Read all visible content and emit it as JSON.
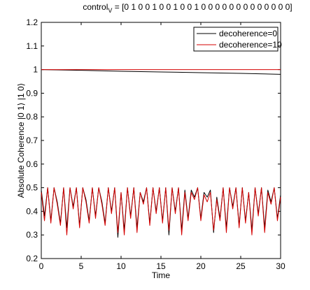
{
  "chart_data": {
    "type": "line",
    "title_main": "control",
    "title_sub": "V",
    "title_rest": " = [0 1 0 0 1 0 0 1 0 0 1 0 0 0 0 0 0 0 0 0 0 0 0 0]",
    "xlabel": "Time",
    "ylabel": "Absolute Coherence |0 1⟩ |1 0⟩",
    "xlim": [
      0,
      30
    ],
    "ylim": [
      0.2,
      1.2
    ],
    "xticks": [
      "0",
      "5",
      "10",
      "15",
      "20",
      "25",
      "30"
    ],
    "yticks": [
      "0.2",
      "0.3",
      "0.4",
      "0.5",
      "0.6",
      "0.7",
      "0.8",
      "0.9",
      "1",
      "1.1",
      "1.2"
    ],
    "legend_position": "top-right",
    "grid": false,
    "series": [
      {
        "name": "decoherence=0",
        "color": "#000000",
        "upper": {
          "x": [
            0,
            5,
            10,
            15,
            20,
            25,
            30
          ],
          "y": [
            1.0,
            0.997,
            0.993,
            0.99,
            0.987,
            0.984,
            0.98
          ]
        },
        "lower": {
          "x": [
            0,
            0.4,
            0.8,
            1.2,
            1.6,
            2.0,
            2.4,
            2.8,
            3.2,
            3.6,
            4.0,
            4.4,
            4.8,
            5.2,
            5.6,
            6.0,
            6.4,
            6.8,
            7.2,
            7.6,
            8.0,
            8.4,
            8.8,
            9.2,
            9.6,
            10.0,
            10.4,
            10.8,
            11.2,
            11.6,
            12.0,
            12.4,
            12.8,
            13.2,
            13.6,
            14.0,
            14.4,
            14.8,
            15.2,
            15.6,
            16.0,
            16.4,
            16.8,
            17.2,
            17.6,
            18.0,
            18.4,
            18.8,
            19.2,
            19.6,
            20.0,
            20.4,
            20.8,
            21.2,
            21.6,
            22.0,
            22.4,
            22.8,
            23.2,
            23.6,
            24.0,
            24.4,
            24.8,
            25.2,
            25.6,
            26.0,
            26.4,
            26.8,
            27.2,
            27.6,
            28.0,
            28.4,
            28.8,
            29.2,
            29.6,
            30.0
          ],
          "y": [
            0.49,
            0.38,
            0.5,
            0.36,
            0.5,
            0.44,
            0.35,
            0.5,
            0.33,
            0.5,
            0.42,
            0.5,
            0.34,
            0.5,
            0.45,
            0.36,
            0.5,
            0.38,
            0.5,
            0.44,
            0.35,
            0.5,
            0.4,
            0.5,
            0.29,
            0.48,
            0.32,
            0.5,
            0.38,
            0.5,
            0.33,
            0.48,
            0.44,
            0.5,
            0.35,
            0.5,
            0.4,
            0.5,
            0.36,
            0.5,
            0.3,
            0.5,
            0.4,
            0.5,
            0.32,
            0.49,
            0.37,
            0.49,
            0.46,
            0.5,
            0.37,
            0.48,
            0.46,
            0.49,
            0.31,
            0.46,
            0.37,
            0.5,
            0.33,
            0.5,
            0.42,
            0.5,
            0.34,
            0.5,
            0.36,
            0.48,
            0.32,
            0.5,
            0.39,
            0.5,
            0.33,
            0.49,
            0.44,
            0.5,
            0.37,
            0.47
          ]
        }
      },
      {
        "name": "decoherence=10",
        "color": "#d40000",
        "upper": {
          "x": [
            0,
            5,
            10,
            15,
            20,
            25,
            30
          ],
          "y": [
            1.0,
            1.0,
            1.0,
            1.0,
            1.0,
            1.0,
            1.0
          ]
        },
        "lower": {
          "x": [
            0,
            0.4,
            0.8,
            1.2,
            1.6,
            2.0,
            2.4,
            2.8,
            3.2,
            3.6,
            4.0,
            4.4,
            4.8,
            5.2,
            5.6,
            6.0,
            6.4,
            6.8,
            7.2,
            7.6,
            8.0,
            8.4,
            8.8,
            9.2,
            9.6,
            10.0,
            10.4,
            10.8,
            11.2,
            11.6,
            12.0,
            12.4,
            12.8,
            13.2,
            13.6,
            14.0,
            14.4,
            14.8,
            15.2,
            15.6,
            16.0,
            16.4,
            16.8,
            17.2,
            17.6,
            18.0,
            18.4,
            18.8,
            19.2,
            19.6,
            20.0,
            20.4,
            20.8,
            21.2,
            21.6,
            22.0,
            22.4,
            22.8,
            23.2,
            23.6,
            24.0,
            24.4,
            24.8,
            25.2,
            25.6,
            26.0,
            26.4,
            26.8,
            27.2,
            27.6,
            28.0,
            28.4,
            28.8,
            29.2,
            29.6,
            30.0
          ],
          "y": [
            0.48,
            0.36,
            0.5,
            0.35,
            0.5,
            0.43,
            0.34,
            0.5,
            0.3,
            0.5,
            0.41,
            0.5,
            0.33,
            0.5,
            0.44,
            0.35,
            0.5,
            0.37,
            0.5,
            0.43,
            0.34,
            0.5,
            0.39,
            0.5,
            0.31,
            0.48,
            0.3,
            0.5,
            0.37,
            0.5,
            0.31,
            0.48,
            0.43,
            0.5,
            0.34,
            0.5,
            0.39,
            0.5,
            0.35,
            0.5,
            0.32,
            0.5,
            0.39,
            0.5,
            0.3,
            0.48,
            0.36,
            0.48,
            0.45,
            0.5,
            0.36,
            0.47,
            0.44,
            0.48,
            0.32,
            0.45,
            0.36,
            0.5,
            0.31,
            0.5,
            0.41,
            0.5,
            0.33,
            0.5,
            0.35,
            0.48,
            0.3,
            0.5,
            0.38,
            0.5,
            0.31,
            0.48,
            0.43,
            0.5,
            0.36,
            0.46
          ]
        }
      }
    ]
  }
}
